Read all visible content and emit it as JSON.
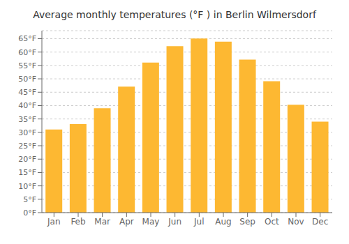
{
  "chart_data": {
    "type": "bar",
    "title": "Average monthly temperatures (°F ) in Berlin Wilmersdorf",
    "categories": [
      "Jan",
      "Feb",
      "Mar",
      "Apr",
      "May",
      "Jun",
      "Jul",
      "Aug",
      "Sep",
      "Oct",
      "Nov",
      "Dec"
    ],
    "values": [
      31.1,
      33.1,
      39.0,
      47.1,
      56.1,
      62.2,
      65.1,
      63.9,
      57.2,
      49.1,
      40.3,
      34.0
    ],
    "color": "#FDB832",
    "ylim": [
      0,
      68
    ],
    "yticks": [
      {
        "value": 0,
        "label": "0°F"
      },
      {
        "value": 5,
        "label": "5°F"
      },
      {
        "value": 10,
        "label": "10°F"
      },
      {
        "value": 15,
        "label": "15°F"
      },
      {
        "value": 20,
        "label": "20°F"
      },
      {
        "value": 25,
        "label": "25°F"
      },
      {
        "value": 30,
        "label": "30°F"
      },
      {
        "value": 35,
        "label": "35°F"
      },
      {
        "value": 40,
        "label": "40°F"
      },
      {
        "value": 45,
        "label": "45°F"
      },
      {
        "value": 50,
        "label": "50°F"
      },
      {
        "value": 55,
        "label": "55°F"
      },
      {
        "value": 60,
        "label": "60°F"
      },
      {
        "value": 65,
        "label": "65°F"
      }
    ],
    "grid": true
  }
}
